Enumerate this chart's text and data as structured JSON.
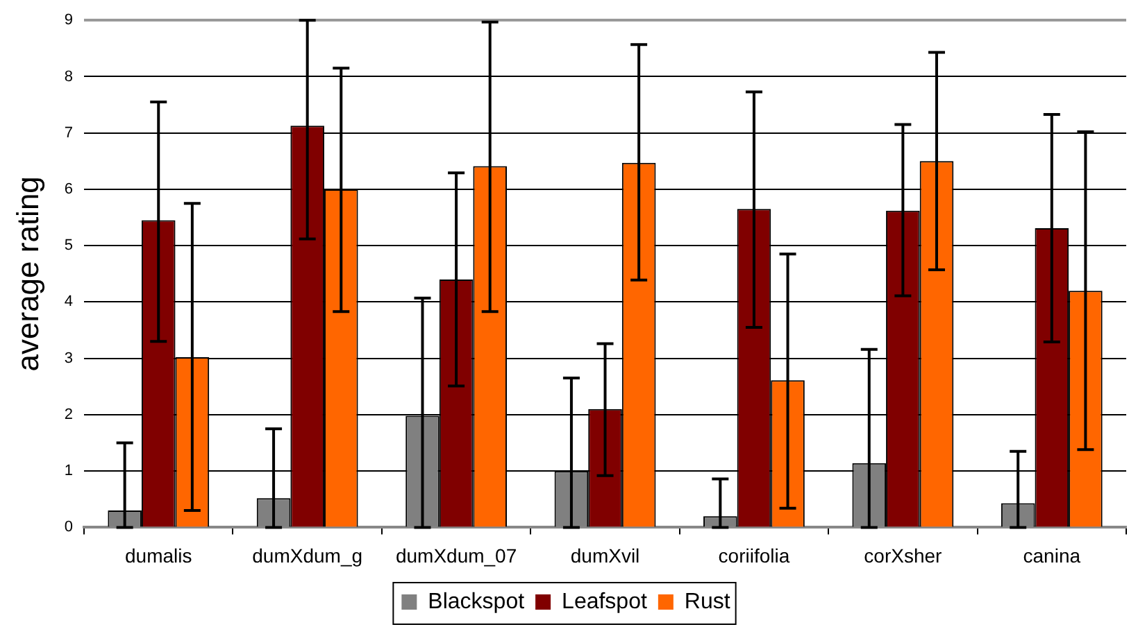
{
  "chart_data": {
    "type": "bar",
    "ylabel": "average rating",
    "categories": [
      "dumalis",
      "dumXdum_g",
      "dumXdum_07",
      "dumXvil",
      "coriifolia",
      "corXsher",
      "canina"
    ],
    "series": [
      {
        "name": "Blackspot",
        "color": "#808080",
        "values": [
          0.3,
          0.52,
          1.98,
          1.0,
          0.2,
          1.14,
          0.43
        ],
        "errors": [
          [
            0,
            1.5
          ],
          [
            0,
            1.75
          ],
          [
            0,
            4.07
          ],
          [
            0,
            2.65
          ],
          [
            0,
            0.86
          ],
          [
            0,
            3.16
          ],
          [
            0,
            1.35
          ]
        ]
      },
      {
        "name": "Leafspot",
        "color": "#800000",
        "values": [
          5.45,
          7.13,
          4.4,
          2.1,
          5.65,
          5.62,
          5.31
        ],
        "errors": [
          [
            3.3,
            7.55
          ],
          [
            5.12,
            9.0
          ],
          [
            2.51,
            6.29
          ],
          [
            0.92,
            3.26
          ],
          [
            3.55,
            7.73
          ],
          [
            4.11,
            7.15
          ],
          [
            3.29,
            7.33
          ]
        ]
      },
      {
        "name": "Rust",
        "color": "#ff6600",
        "values": [
          3.02,
          6.0,
          6.41,
          6.47,
          2.61,
          6.5,
          4.2
        ],
        "errors": [
          [
            0.3,
            5.75
          ],
          [
            3.83,
            8.15
          ],
          [
            3.83,
            8.97
          ],
          [
            4.39,
            8.57
          ],
          [
            0.34,
            4.85
          ],
          [
            4.57,
            8.43
          ],
          [
            1.38,
            7.02
          ]
        ]
      }
    ],
    "ylim": [
      0,
      9
    ],
    "yticks": [
      0,
      1,
      2,
      3,
      4,
      5,
      6,
      7,
      8,
      9
    ],
    "grid": "y",
    "legend": "bottom"
  }
}
